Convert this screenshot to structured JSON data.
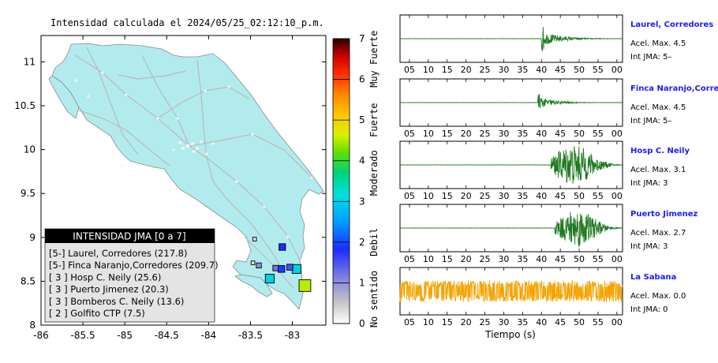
{
  "map": {
    "title": "Intensidad calculada el 2024/05/25_02:12:10_p.m.",
    "x_ticks": [
      "-86",
      "-85.5",
      "-85",
      "-84.5",
      "-84",
      "-83.5",
      "-83"
    ],
    "y_ticks": [
      "11",
      "10.5",
      "10",
      "9.5",
      "9",
      "8.5",
      "8"
    ],
    "xlim": [
      -86,
      -82.6
    ],
    "ylim": [
      8,
      11.3
    ],
    "land_color": "#b2ebee",
    "legend_title": "INTENSIDAD JMA [0 a 7]",
    "legend_items": [
      {
        "label": "[5-]  Laurel, Corredores (217.8)"
      },
      {
        "label": "[5-]  Finca Naranjo,Corredores (209.7)"
      },
      {
        "label": "[ 3 ]  Hosp C. Neily (25.6)"
      },
      {
        "label": "[ 3 ]  Puerto Jimenez (20.3)"
      },
      {
        "label": "[ 3 ]  Bomberos C. Neily (13.6)"
      },
      {
        "label": "[ 2 ]  Golfito CTP (7.5)"
      }
    ],
    "stations": [
      {
        "lon": -82.85,
        "lat": 8.45,
        "intensity": 4.5
      },
      {
        "lon": -82.95,
        "lat": 8.64,
        "intensity": 3.0
      },
      {
        "lon": -83.12,
        "lat": 8.89,
        "intensity": 1.8
      },
      {
        "lon": -83.13,
        "lat": 8.64,
        "intensity": 1.9
      },
      {
        "lon": -83.27,
        "lat": 8.53,
        "intensity": 3.0
      },
      {
        "lon": -83.03,
        "lat": 8.66,
        "intensity": 1.5
      },
      {
        "lon": -83.2,
        "lat": 8.65,
        "intensity": 1.2
      },
      {
        "lon": -83.4,
        "lat": 8.68,
        "intensity": 1.0
      },
      {
        "lon": -83.47,
        "lat": 8.71,
        "intensity": 0.3
      },
      {
        "lon": -83.45,
        "lat": 8.98,
        "intensity": 0.3
      }
    ]
  },
  "colorbar": {
    "ticks": [
      "0",
      "1",
      "2",
      "3",
      "4",
      "5",
      "6",
      "7"
    ],
    "range": [
      0,
      7
    ],
    "categories": [
      "No sentido",
      "Debil",
      "Moderado",
      "Fuerte",
      "Muy Fuerte"
    ]
  },
  "traces": {
    "x_ticks": [
      "05",
      "10",
      "15",
      "20",
      "25",
      "30",
      "35",
      "40",
      "45",
      "50",
      "55",
      "00"
    ],
    "xlabel": "Tiempo (s)",
    "items": [
      {
        "station": "Laurel, Corredores",
        "pga": "Acel. Max. 4.5",
        "jma": "Int JMA: 5–",
        "color": "#1f7a1f",
        "onset": 40.0,
        "amp": 0.65,
        "decay": 5
      },
      {
        "station": "Finca Naranjo,Corredores",
        "pga": "Acel. Max. 4.5",
        "jma": "Int JMA: 5–",
        "color": "#1f7a1f",
        "onset": 39.0,
        "amp": 0.6,
        "decay": 4
      },
      {
        "station": "Hosp C. Neily",
        "pga": "Acel. Max. 3.1",
        "jma": "Int JMA: 3",
        "color": "#1f7a1f",
        "onset": 42.5,
        "amp": 0.95,
        "decay": 10
      },
      {
        "station": "Puerto Jimenez",
        "pga": "Acel. Max. 2.7",
        "jma": "Int JMA: 3",
        "color": "#1f7a1f",
        "onset": 43.5,
        "amp": 0.9,
        "decay": 9
      },
      {
        "station": "La Sabana",
        "pga": "Acel. Max. 0.0",
        "jma": "Int JMA: 0",
        "color": "#f5a300",
        "onset": 0,
        "amp": 0.5,
        "decay": 0
      }
    ]
  },
  "chart_data": {
    "type": "scatter",
    "title": "Intensidad calculada el 2024/05/25_02:12:10_p.m.",
    "xlabel": "",
    "ylabel": "",
    "xlim": [
      -86,
      -82.6
    ],
    "ylim": [
      8,
      11.3
    ],
    "legend_position": "bottom-left",
    "series": [
      {
        "name": "Laurel, Corredores",
        "intensity": "5-",
        "distance": 217.8
      },
      {
        "name": "Finca Naranjo,Corredores",
        "intensity": "5-",
        "distance": 209.7
      },
      {
        "name": "Hosp C. Neily",
        "intensity": "3",
        "distance": 25.6
      },
      {
        "name": "Puerto Jimenez",
        "intensity": "3",
        "distance": 20.3
      },
      {
        "name": "Bomberos C. Neily",
        "intensity": "3",
        "distance": 13.6
      },
      {
        "name": "Golfito CTP",
        "intensity": "2",
        "distance": 7.5
      }
    ]
  }
}
